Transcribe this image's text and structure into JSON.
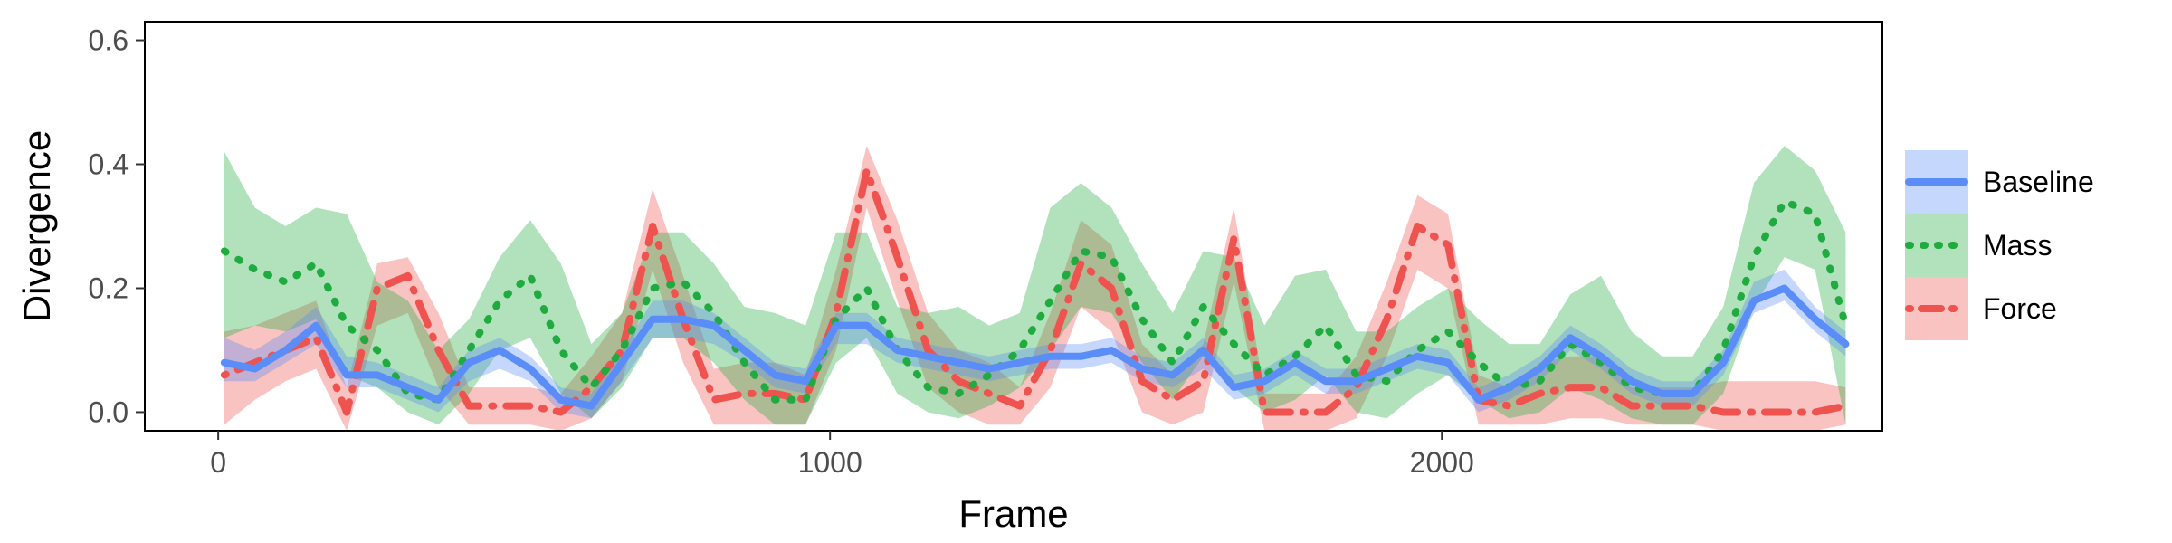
{
  "chart_data": {
    "type": "line",
    "title": "",
    "xlabel": "Frame",
    "ylabel": "Divergence",
    "xlim": [
      -120,
      2720
    ],
    "ylim": [
      -0.03,
      0.63
    ],
    "x_ticks": [
      0,
      1000,
      2000
    ],
    "x_tick_labels": [
      "0",
      "1000",
      "2000"
    ],
    "y_ticks": [
      0.0,
      0.2,
      0.4,
      0.6
    ],
    "y_tick_labels": [
      "0.0",
      "0.2",
      "0.4",
      "0.6"
    ],
    "grid": false,
    "legend_position": "right",
    "x": [
      10,
      60,
      110,
      160,
      210,
      260,
      310,
      360,
      410,
      460,
      510,
      560,
      610,
      660,
      710,
      760,
      810,
      860,
      910,
      960,
      1010,
      1060,
      1110,
      1160,
      1210,
      1260,
      1310,
      1360,
      1410,
      1460,
      1510,
      1560,
      1610,
      1660,
      1710,
      1760,
      1810,
      1860,
      1910,
      1960,
      2010,
      2060,
      2110,
      2160,
      2210,
      2260,
      2310,
      2360,
      2410,
      2460,
      2510,
      2560,
      2610,
      2660
    ],
    "series": [
      {
        "name": "Baseline",
        "color": "#5a8df7",
        "line_style": "solid",
        "values": [
          0.08,
          0.07,
          0.1,
          0.14,
          0.06,
          0.06,
          0.04,
          0.02,
          0.08,
          0.1,
          0.07,
          0.02,
          0.01,
          0.08,
          0.15,
          0.15,
          0.14,
          0.1,
          0.06,
          0.05,
          0.14,
          0.14,
          0.1,
          0.09,
          0.08,
          0.07,
          0.08,
          0.09,
          0.09,
          0.1,
          0.07,
          0.06,
          0.1,
          0.04,
          0.05,
          0.08,
          0.05,
          0.05,
          0.07,
          0.09,
          0.08,
          0.02,
          0.04,
          0.07,
          0.12,
          0.09,
          0.05,
          0.03,
          0.03,
          0.08,
          0.18,
          0.2,
          0.15,
          0.11
        ],
        "ci_lower": [
          0.05,
          0.05,
          0.08,
          0.11,
          0.04,
          0.04,
          0.02,
          0.0,
          0.05,
          0.07,
          0.05,
          0.0,
          -0.01,
          0.05,
          0.12,
          0.12,
          0.11,
          0.08,
          0.04,
          0.03,
          0.11,
          0.11,
          0.08,
          0.07,
          0.06,
          0.05,
          0.06,
          0.07,
          0.07,
          0.08,
          0.05,
          0.04,
          0.07,
          0.02,
          0.03,
          0.06,
          0.03,
          0.03,
          0.05,
          0.07,
          0.06,
          0.0,
          0.02,
          0.05,
          0.1,
          0.07,
          0.03,
          0.01,
          0.01,
          0.06,
          0.16,
          0.18,
          0.13,
          0.09
        ],
        "ci_upper": [
          0.12,
          0.1,
          0.13,
          0.17,
          0.09,
          0.08,
          0.06,
          0.04,
          0.1,
          0.12,
          0.09,
          0.04,
          0.03,
          0.1,
          0.18,
          0.18,
          0.16,
          0.12,
          0.08,
          0.07,
          0.16,
          0.16,
          0.12,
          0.11,
          0.1,
          0.09,
          0.1,
          0.11,
          0.11,
          0.12,
          0.09,
          0.08,
          0.12,
          0.06,
          0.07,
          0.1,
          0.07,
          0.07,
          0.09,
          0.11,
          0.1,
          0.04,
          0.06,
          0.09,
          0.14,
          0.11,
          0.07,
          0.05,
          0.05,
          0.1,
          0.21,
          0.23,
          0.17,
          0.13
        ]
      },
      {
        "name": "Mass",
        "color": "#1fab3f",
        "line_style": "dotted",
        "values": [
          0.26,
          0.23,
          0.21,
          0.24,
          0.14,
          0.1,
          0.03,
          0.02,
          0.1,
          0.18,
          0.22,
          0.1,
          0.04,
          0.1,
          0.2,
          0.21,
          0.16,
          0.08,
          0.02,
          0.02,
          0.15,
          0.2,
          0.1,
          0.04,
          0.03,
          0.06,
          0.1,
          0.18,
          0.26,
          0.25,
          0.15,
          0.08,
          0.17,
          0.11,
          0.06,
          0.09,
          0.14,
          0.06,
          0.05,
          0.1,
          0.13,
          0.08,
          0.04,
          0.05,
          0.11,
          0.08,
          0.04,
          0.03,
          0.03,
          0.1,
          0.25,
          0.34,
          0.32,
          0.14
        ],
        "ci_lower": [
          0.12,
          0.14,
          0.13,
          0.15,
          0.06,
          0.04,
          0.0,
          -0.02,
          0.03,
          0.1,
          0.12,
          0.03,
          -0.01,
          0.04,
          0.12,
          0.12,
          0.08,
          0.02,
          -0.02,
          -0.02,
          0.08,
          0.12,
          0.03,
          0.0,
          -0.01,
          0.01,
          0.04,
          0.1,
          0.17,
          0.16,
          0.08,
          0.02,
          0.09,
          0.04,
          0.0,
          0.02,
          0.06,
          0.0,
          -0.01,
          0.03,
          0.06,
          0.02,
          -0.01,
          0.0,
          0.04,
          0.02,
          -0.01,
          -0.02,
          -0.02,
          0.03,
          0.17,
          0.25,
          0.23,
          -0.02
        ],
        "ci_upper": [
          0.42,
          0.33,
          0.3,
          0.33,
          0.32,
          0.21,
          0.18,
          0.1,
          0.15,
          0.25,
          0.31,
          0.24,
          0.11,
          0.16,
          0.29,
          0.29,
          0.24,
          0.17,
          0.16,
          0.14,
          0.29,
          0.29,
          0.17,
          0.16,
          0.17,
          0.14,
          0.16,
          0.33,
          0.37,
          0.33,
          0.24,
          0.16,
          0.26,
          0.25,
          0.14,
          0.22,
          0.23,
          0.13,
          0.13,
          0.17,
          0.2,
          0.15,
          0.11,
          0.11,
          0.19,
          0.22,
          0.13,
          0.09,
          0.09,
          0.17,
          0.37,
          0.43,
          0.39,
          0.29
        ]
      },
      {
        "name": "Force",
        "color": "#ef5350",
        "line_style": "dotdash",
        "values": [
          0.06,
          0.08,
          0.1,
          0.12,
          0.0,
          0.2,
          0.22,
          0.1,
          0.01,
          0.01,
          0.01,
          0.0,
          0.04,
          0.1,
          0.3,
          0.15,
          0.02,
          0.03,
          0.03,
          0.02,
          0.16,
          0.39,
          0.25,
          0.1,
          0.05,
          0.03,
          0.01,
          0.1,
          0.24,
          0.2,
          0.05,
          0.02,
          0.05,
          0.28,
          0.0,
          0.0,
          0.0,
          0.04,
          0.15,
          0.3,
          0.27,
          0.02,
          0.01,
          0.03,
          0.04,
          0.04,
          0.01,
          0.01,
          0.01,
          0.0,
          0.0,
          0.0,
          0.0,
          0.01
        ],
        "ci_lower": [
          -0.02,
          0.02,
          0.05,
          0.07,
          -0.03,
          0.14,
          0.16,
          0.04,
          -0.02,
          -0.02,
          -0.02,
          -0.03,
          -0.01,
          0.05,
          0.23,
          0.08,
          -0.02,
          -0.02,
          -0.02,
          -0.02,
          0.1,
          0.33,
          0.18,
          0.04,
          0.0,
          -0.02,
          -0.02,
          0.04,
          0.17,
          0.13,
          0.0,
          -0.02,
          0.0,
          0.21,
          -0.03,
          -0.03,
          -0.03,
          -0.01,
          0.09,
          0.23,
          0.2,
          -0.02,
          -0.02,
          -0.02,
          -0.01,
          -0.01,
          -0.02,
          -0.02,
          -0.02,
          -0.03,
          -0.03,
          -0.03,
          -0.03,
          -0.02
        ],
        "ci_upper": [
          0.13,
          0.14,
          0.16,
          0.18,
          0.04,
          0.24,
          0.25,
          0.16,
          0.04,
          0.04,
          0.04,
          0.03,
          0.09,
          0.16,
          0.36,
          0.22,
          0.07,
          0.08,
          0.08,
          0.06,
          0.23,
          0.43,
          0.31,
          0.16,
          0.1,
          0.08,
          0.04,
          0.16,
          0.31,
          0.27,
          0.11,
          0.06,
          0.11,
          0.33,
          0.03,
          0.03,
          0.03,
          0.09,
          0.21,
          0.35,
          0.32,
          0.06,
          0.04,
          0.08,
          0.09,
          0.09,
          0.04,
          0.04,
          0.04,
          0.05,
          0.05,
          0.05,
          0.05,
          0.04
        ]
      }
    ]
  }
}
